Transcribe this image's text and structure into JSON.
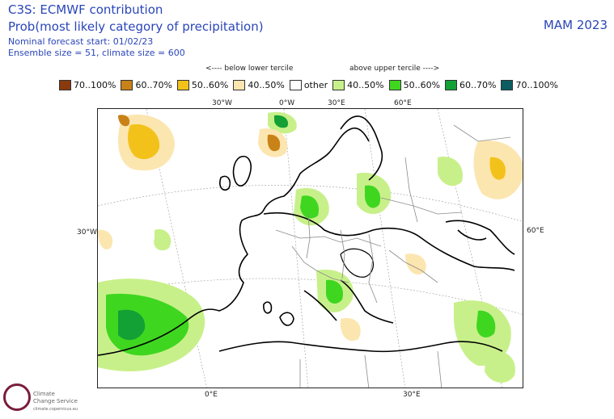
{
  "header": {
    "title": "C3S: ECMWF contribution",
    "subtitle": "Prob(most likely category of precipitation)",
    "forecast_start": "Nominal forecast start: 01/02/23",
    "ensemble": "Ensemble size = 51, climate size = 600",
    "season": "MAM 2023"
  },
  "tercile_labels": {
    "below": "<---- below lower tercile",
    "above": "above upper tercile ---->"
  },
  "legend": [
    {
      "label": "70..100%",
      "color": "#8b3a0e"
    },
    {
      "label": "60..70%",
      "color": "#c98218"
    },
    {
      "label": "50..60%",
      "color": "#f3c21a"
    },
    {
      "label": "40..50%",
      "color": "#fce6b0"
    },
    {
      "label": "other",
      "color": "#ffffff"
    },
    {
      "label": "40..50%",
      "color": "#c8f08a"
    },
    {
      "label": "50..60%",
      "color": "#3fd620"
    },
    {
      "label": "60..70%",
      "color": "#13a035"
    },
    {
      "label": "70..100%",
      "color": "#0b5d62"
    }
  ],
  "axis_labels": {
    "top_30w": "30°W",
    "top_0w": "0°W",
    "top_30e": "30°E",
    "top_60e": "60°E",
    "left_30w": "30°W",
    "right_60e": "60°E",
    "bottom_0e": "0°E",
    "bottom_30e": "30°E"
  },
  "logo": {
    "line1": "Climate",
    "line2": "Change Service",
    "line3": "climate.copernicus.eu"
  }
}
